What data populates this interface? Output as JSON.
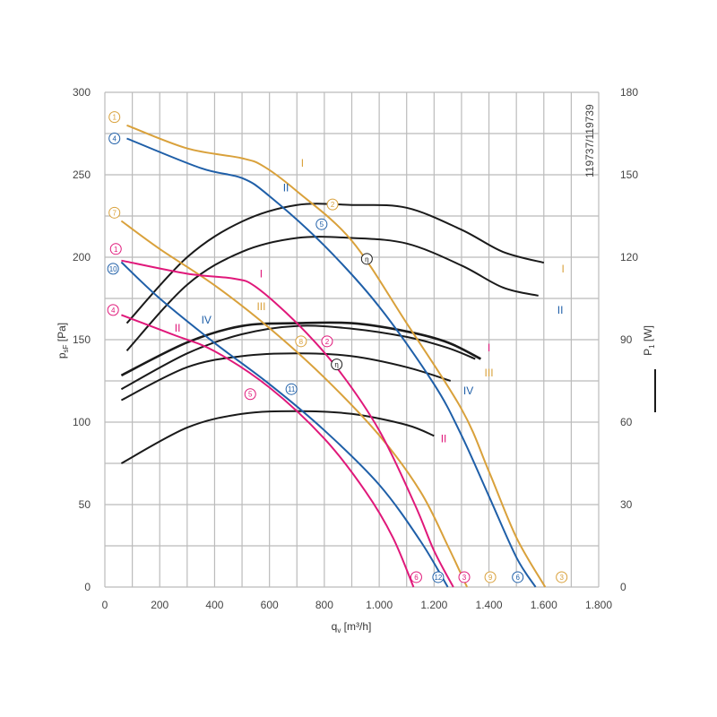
{
  "chart_data": {
    "type": "line",
    "code": "119737/119739",
    "x_axis": {
      "label": "q",
      "sub": "v",
      "unit": " [m³/h]",
      "min": 0,
      "max": 1800,
      "ticks": [
        0,
        200,
        400,
        600,
        800,
        1000,
        1200,
        1400,
        1600,
        1800
      ],
      "tick_labels": [
        "0",
        "200",
        "400",
        "600",
        "800",
        "1.000",
        "1.200",
        "1.400",
        "1.600",
        "1.800"
      ]
    },
    "y_left": {
      "label": "p",
      "sub": "sF",
      "unit": " [Pa]",
      "min": 0,
      "max": 300,
      "ticks": [
        0,
        50,
        100,
        150,
        200,
        250,
        300
      ],
      "tick_labels": [
        "0",
        "50",
        "100",
        "150",
        "200",
        "250",
        "300"
      ]
    },
    "y_right": {
      "label": "P",
      "sub": "1",
      "unit": " [W]",
      "min": 0,
      "max": 180,
      "ticks": [
        0,
        30,
        60,
        90,
        120,
        150,
        180
      ],
      "tick_labels": [
        "0",
        "30",
        "60",
        "90",
        "120",
        "150",
        "180"
      ]
    },
    "grid": true,
    "colors": {
      "orange": "#d9a13b",
      "blue": "#1f5fa8",
      "magenta": "#e0187a",
      "black": "#1a1a1a",
      "grid": "#bbbbbb"
    },
    "pressure_curves": [
      {
        "marker": "1",
        "end_marker": "3",
        "roman": "I",
        "color": "orange",
        "points": [
          [
            80,
            280
          ],
          [
            300,
            266
          ],
          [
            500,
            260
          ],
          [
            580,
            255
          ],
          [
            700,
            240
          ],
          [
            900,
            210
          ],
          [
            1100,
            160
          ],
          [
            1300,
            108
          ],
          [
            1400,
            70
          ],
          [
            1500,
            30
          ],
          [
            1605,
            0
          ]
        ]
      },
      {
        "marker": "4",
        "end_marker": "6",
        "roman": "II",
        "color": "blue",
        "points": [
          [
            80,
            272
          ],
          [
            350,
            254
          ],
          [
            500,
            248
          ],
          [
            600,
            237
          ],
          [
            800,
            207
          ],
          [
            1000,
            170
          ],
          [
            1200,
            123
          ],
          [
            1300,
            92
          ],
          [
            1400,
            55
          ],
          [
            1500,
            18
          ],
          [
            1570,
            0
          ]
        ]
      },
      {
        "marker": "7",
        "end_marker": "9",
        "roman": "III",
        "color": "orange",
        "points": [
          [
            60,
            222
          ],
          [
            200,
            205
          ],
          [
            400,
            183
          ],
          [
            600,
            157
          ],
          [
            800,
            127
          ],
          [
            1000,
            92
          ],
          [
            1150,
            58
          ],
          [
            1250,
            25
          ],
          [
            1320,
            0
          ]
        ]
      },
      {
        "marker": "1",
        "end_marker": "3",
        "roman": "I",
        "color": "magenta",
        "points": [
          [
            60,
            198
          ],
          [
            300,
            190
          ],
          [
            470,
            187
          ],
          [
            550,
            182
          ],
          [
            700,
            160
          ],
          [
            850,
            132
          ],
          [
            1000,
            95
          ],
          [
            1130,
            50
          ],
          [
            1200,
            22
          ],
          [
            1270,
            0
          ]
        ]
      },
      {
        "marker": "10",
        "end_marker": "12",
        "roman": "IV",
        "color": "blue",
        "points": [
          [
            60,
            197
          ],
          [
            200,
            175
          ],
          [
            400,
            148
          ],
          [
            600,
            123
          ],
          [
            800,
            95
          ],
          [
            1000,
            62
          ],
          [
            1150,
            28
          ],
          [
            1250,
            0
          ]
        ]
      },
      {
        "marker": "4",
        "end_marker": "6",
        "roman": "II",
        "color": "magenta",
        "points": [
          [
            60,
            165
          ],
          [
            250,
            153
          ],
          [
            400,
            143
          ],
          [
            600,
            121
          ],
          [
            800,
            90
          ],
          [
            950,
            58
          ],
          [
            1050,
            30
          ],
          [
            1125,
            0
          ]
        ]
      }
    ],
    "power_curves": [
      {
        "roman": "I",
        "color": "black",
        "points": [
          [
            80,
            96
          ],
          [
            300,
            120
          ],
          [
            500,
            133
          ],
          [
            700,
            139
          ],
          [
            900,
            139
          ],
          [
            1100,
            138
          ],
          [
            1300,
            130
          ],
          [
            1450,
            122
          ],
          [
            1600,
            118
          ]
        ]
      },
      {
        "roman": "II",
        "color": "black",
        "points": [
          [
            80,
            86
          ],
          [
            300,
            110
          ],
          [
            500,
            122
          ],
          [
            700,
            127
          ],
          [
            900,
            127
          ],
          [
            1100,
            125
          ],
          [
            1300,
            117
          ],
          [
            1450,
            109
          ],
          [
            1580,
            106
          ]
        ]
      },
      {
        "roman": "I",
        "color": "black",
        "points": [
          [
            60,
            77
          ],
          [
            300,
            89
          ],
          [
            500,
            95
          ],
          [
            700,
            96
          ],
          [
            900,
            96
          ],
          [
            1100,
            93
          ],
          [
            1250,
            89
          ],
          [
            1370,
            83
          ]
        ]
      },
      {
        "roman": "III",
        "color": "black",
        "points": [
          [
            60,
            72
          ],
          [
            300,
            85
          ],
          [
            500,
            92
          ],
          [
            700,
            95
          ],
          [
            900,
            94
          ],
          [
            1100,
            91
          ],
          [
            1250,
            87
          ],
          [
            1350,
            83
          ]
        ]
      },
      {
        "roman": "IV",
        "color": "black",
        "points": [
          [
            60,
            68
          ],
          [
            300,
            80
          ],
          [
            500,
            84
          ],
          [
            700,
            85
          ],
          [
            900,
            84
          ],
          [
            1100,
            80
          ],
          [
            1260,
            75
          ]
        ]
      },
      {
        "roman": "II",
        "color": "black",
        "points": [
          [
            60,
            45
          ],
          [
            300,
            58
          ],
          [
            500,
            63
          ],
          [
            700,
            64
          ],
          [
            900,
            63
          ],
          [
            1100,
            59
          ],
          [
            1200,
            55
          ]
        ]
      }
    ],
    "annotations": [
      {
        "text": "1",
        "color": "orange",
        "shape": "circle",
        "x": 35,
        "y": 285
      },
      {
        "text": "4",
        "color": "blue",
        "shape": "circle",
        "x": 35,
        "y": 272
      },
      {
        "text": "7",
        "color": "orange",
        "shape": "circle",
        "x": 35,
        "y": 227
      },
      {
        "text": "1",
        "color": "magenta",
        "shape": "circle",
        "x": 40,
        "y": 205
      },
      {
        "text": "10",
        "color": "blue",
        "shape": "circle",
        "x": 30,
        "y": 193
      },
      {
        "text": "4",
        "color": "magenta",
        "shape": "circle",
        "x": 30,
        "y": 168
      },
      {
        "text": "I",
        "color": "orange",
        "shape": "text",
        "x": 720,
        "y": 257
      },
      {
        "text": "II",
        "color": "blue",
        "shape": "text",
        "x": 660,
        "y": 242
      },
      {
        "text": "2",
        "color": "orange",
        "shape": "circle",
        "x": 830,
        "y": 232
      },
      {
        "text": "5",
        "color": "blue",
        "shape": "circle",
        "x": 790,
        "y": 220
      },
      {
        "text": "η",
        "color": "black",
        "shape": "circle",
        "x": 955,
        "y": 199
      },
      {
        "text": "I",
        "color": "orange",
        "shape": "text",
        "x": 1670,
        "y": 193
      },
      {
        "text": "II",
        "color": "blue",
        "shape": "text",
        "x": 1660,
        "y": 168
      },
      {
        "text": "I",
        "color": "magenta",
        "shape": "text",
        "x": 570,
        "y": 190
      },
      {
        "text": "III",
        "color": "orange",
        "shape": "text",
        "x": 570,
        "y": 170
      },
      {
        "text": "IV",
        "color": "blue",
        "shape": "text",
        "x": 370,
        "y": 162
      },
      {
        "text": "II",
        "color": "magenta",
        "shape": "text",
        "x": 265,
        "y": 157
      },
      {
        "text": "8",
        "color": "orange",
        "shape": "circle",
        "x": 715,
        "y": 149
      },
      {
        "text": "2",
        "color": "magenta",
        "shape": "circle",
        "x": 810,
        "y": 149
      },
      {
        "text": "η",
        "color": "black",
        "shape": "circle",
        "x": 845,
        "y": 135
      },
      {
        "text": "I",
        "color": "magenta",
        "shape": "text",
        "x": 1400,
        "y": 145
      },
      {
        "text": "III",
        "color": "orange",
        "shape": "text",
        "x": 1400,
        "y": 130
      },
      {
        "text": "IV",
        "color": "blue",
        "shape": "text",
        "x": 1325,
        "y": 119
      },
      {
        "text": "5",
        "color": "magenta",
        "shape": "circle",
        "x": 530,
        "y": 117
      },
      {
        "text": "11",
        "color": "blue",
        "shape": "circle",
        "x": 680,
        "y": 120
      },
      {
        "text": "II",
        "color": "magenta",
        "shape": "text",
        "x": 1235,
        "y": 90
      },
      {
        "text": "6",
        "color": "magenta",
        "shape": "circle",
        "x": 1135,
        "y": 6
      },
      {
        "text": "12",
        "color": "blue",
        "shape": "circle",
        "x": 1215,
        "y": 6
      },
      {
        "text": "3",
        "color": "magenta",
        "shape": "circle",
        "x": 1310,
        "y": 6
      },
      {
        "text": "9",
        "color": "orange",
        "shape": "circle",
        "x": 1405,
        "y": 6
      },
      {
        "text": "6",
        "color": "blue",
        "shape": "circle",
        "x": 1505,
        "y": 6
      },
      {
        "text": "3",
        "color": "orange",
        "shape": "circle",
        "x": 1665,
        "y": 6
      }
    ]
  }
}
